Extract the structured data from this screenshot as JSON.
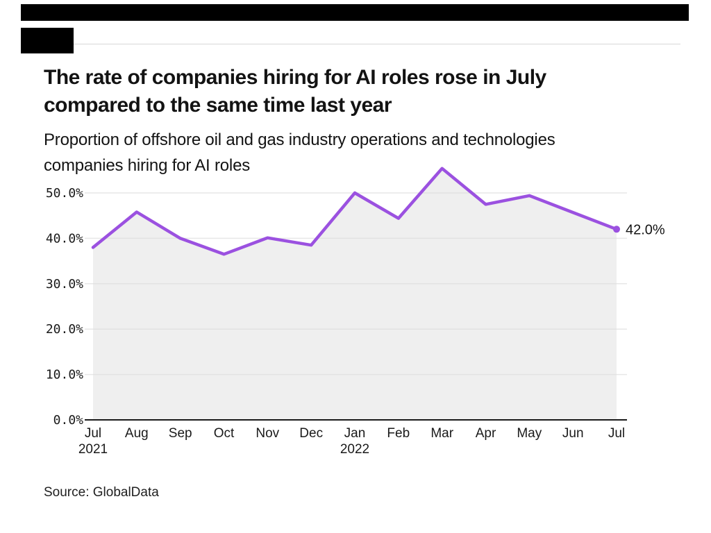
{
  "header": {
    "bar_color": "#000000",
    "logo_block_color": "#000000",
    "rule_color": "#d8d8d8"
  },
  "title": "The rate of companies hiring for AI roles rose in July\ncompared to the same time last year",
  "subtitle": "Proportion of offshore oil and gas industry operations and technologies\ncompanies hiring for AI roles",
  "source": "Source: GlobalData",
  "chart_data": {
    "type": "area",
    "title": "Proportion of offshore oil and gas industry operations and technologies companies hiring for AI roles",
    "categories": [
      "Jul",
      "Aug",
      "Sep",
      "Oct",
      "Nov",
      "Dec",
      "Jan",
      "Feb",
      "Mar",
      "Apr",
      "May",
      "Jun",
      "Jul"
    ],
    "x_year_labels": [
      {
        "index": 0,
        "label": "2021"
      },
      {
        "index": 6,
        "label": "2022"
      }
    ],
    "values": [
      38.0,
      45.8,
      40.0,
      36.5,
      40.1,
      38.5,
      50.0,
      44.4,
      55.4,
      47.5,
      49.4,
      45.7,
      42.0
    ],
    "end_label": "42.0%",
    "yticks": [
      0,
      10,
      20,
      30,
      40,
      50
    ],
    "ytick_labels": [
      "0.0%",
      "10.0%",
      "20.0%",
      "30.0%",
      "40.0%",
      "50.0%"
    ],
    "ylim": [
      0,
      57.5
    ],
    "xlabel": "",
    "ylabel": "",
    "grid": true,
    "legend": "none",
    "line_color": "#9B51E0",
    "dot_color": "#9B51E0",
    "area_fill": "rgba(220,220,220,0.45)",
    "grid_color": "#e7e7e7",
    "axis_color": "#1a1a1a",
    "tick_label_color": "#1a1a1a",
    "end_label_color": "#131313"
  }
}
